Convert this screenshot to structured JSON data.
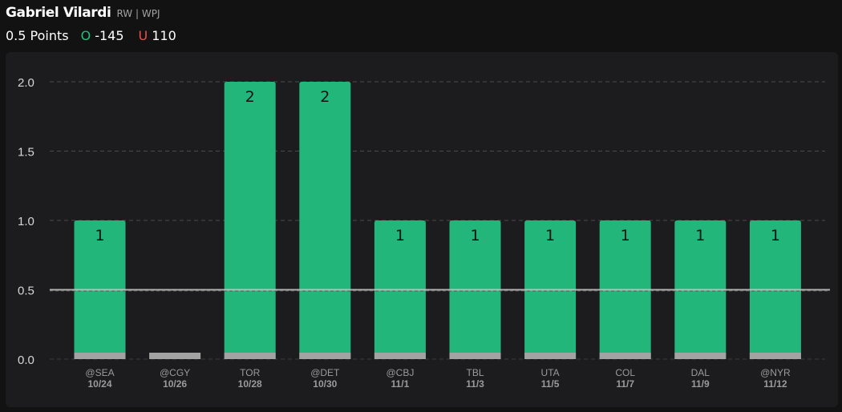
{
  "header": {
    "player_name": "Gabriel Vilardi",
    "player_meta": "RW | WPJ",
    "line_label": "0.5 Points",
    "over_icon": "O",
    "over_odds": "-145",
    "under_icon": "U",
    "under_odds": "110"
  },
  "colors": {
    "hit": "#23b67b",
    "miss": "#a3a3a3",
    "panel": "#1c1c1e",
    "background": "#121212",
    "over": "#23c07d",
    "under": "#f04f4f"
  },
  "chart_data": {
    "type": "bar",
    "line": 0.5,
    "ylim": [
      0,
      2
    ],
    "yticks": [
      "0.0",
      "0.5",
      "1.0",
      "1.5",
      "2.0"
    ],
    "grid": true,
    "categories": [
      {
        "opponent": "@SEA",
        "date": "10/24"
      },
      {
        "opponent": "@CGY",
        "date": "10/26"
      },
      {
        "opponent": "TOR",
        "date": "10/28"
      },
      {
        "opponent": "@DET",
        "date": "10/30"
      },
      {
        "opponent": "@CBJ",
        "date": "11/1"
      },
      {
        "opponent": "TBL",
        "date": "11/3"
      },
      {
        "opponent": "UTA",
        "date": "11/5"
      },
      {
        "opponent": "COL",
        "date": "11/7"
      },
      {
        "opponent": "DAL",
        "date": "11/9"
      },
      {
        "opponent": "@NYR",
        "date": "11/12"
      }
    ],
    "values": [
      1,
      0,
      2,
      2,
      1,
      1,
      1,
      1,
      1,
      1
    ],
    "value_labels": [
      "1",
      "",
      "2",
      "2",
      "1",
      "1",
      "1",
      "1",
      "1",
      "1"
    ]
  }
}
